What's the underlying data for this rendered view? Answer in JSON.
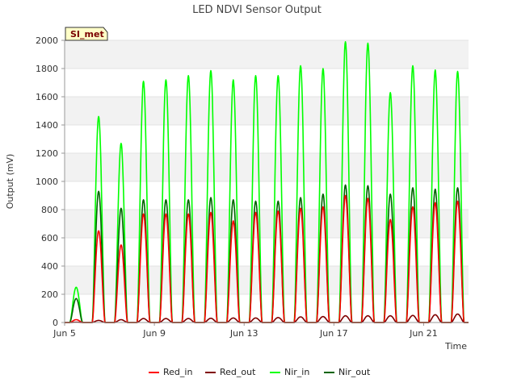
{
  "chart_data": {
    "type": "line",
    "title": "LED NDVI Sensor Output",
    "badge": "SI_met",
    "xlabel": "Time",
    "ylabel": "Output (mV)",
    "ylim": [
      0,
      2000
    ],
    "yticks": [
      0,
      200,
      400,
      600,
      800,
      1000,
      1200,
      1400,
      1600,
      1800,
      2000
    ],
    "xlim": [
      "2021-06-05",
      "2021-06-23"
    ],
    "xticks": [
      {
        "date": "2021-06-05",
        "label": "Jun 5"
      },
      {
        "date": "2021-06-09",
        "label": "Jun 9"
      },
      {
        "date": "2021-06-13",
        "label": "Jun 13"
      },
      {
        "date": "2021-06-17",
        "label": "Jun 17"
      },
      {
        "date": "2021-06-21",
        "label": "Jun 21"
      }
    ],
    "grid": "horizontal bands",
    "legend": "bottom",
    "days": [
      "2021-06-05",
      "2021-06-06",
      "2021-06-07",
      "2021-06-08",
      "2021-06-09",
      "2021-06-10",
      "2021-06-11",
      "2021-06-12",
      "2021-06-13",
      "2021-06-14",
      "2021-06-15",
      "2021-06-16",
      "2021-06-17",
      "2021-06-18",
      "2021-06-19",
      "2021-06-20",
      "2021-06-21",
      "2021-06-22"
    ],
    "series": [
      {
        "name": "Red_in",
        "color": "#ff0000",
        "daily_peak": [
          20,
          650,
          550,
          770,
          770,
          770,
          780,
          720,
          780,
          790,
          810,
          820,
          900,
          880,
          730,
          820,
          850,
          860
        ]
      },
      {
        "name": "Red_out",
        "color": "#800000",
        "daily_peak": [
          2,
          15,
          20,
          28,
          28,
          28,
          30,
          32,
          32,
          35,
          40,
          42,
          48,
          48,
          48,
          50,
          55,
          60
        ]
      },
      {
        "name": "Nir_in",
        "color": "#00ff00",
        "daily_peak": [
          250,
          1460,
          1270,
          1710,
          1720,
          1750,
          1785,
          1720,
          1750,
          1750,
          1820,
          1800,
          1990,
          1980,
          1630,
          1820,
          1790,
          1780
        ]
      },
      {
        "name": "Nir_out",
        "color": "#006400",
        "daily_peak": [
          170,
          930,
          810,
          870,
          870,
          870,
          885,
          870,
          860,
          860,
          885,
          910,
          975,
          970,
          910,
          955,
          945,
          955
        ]
      }
    ]
  }
}
